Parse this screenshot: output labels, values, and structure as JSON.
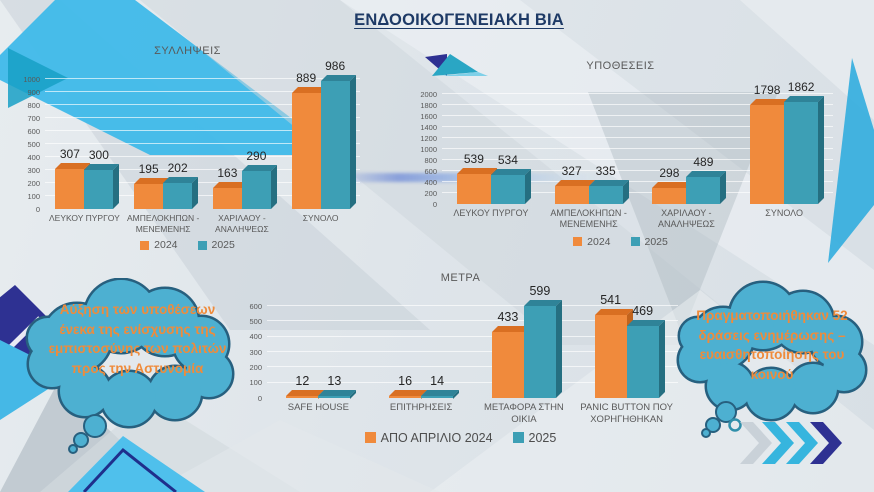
{
  "slide": {
    "title": "ΕΝΔΟΟΙΚΟΓΕΝΕΙΑΚΗ ΒΙΑ",
    "callouts": {
      "left": "Αύξηση των υποθέσεων ένεκα της ενίσχυσης της εμπιστοσύνης των πολιτών προς την Αστυνομία",
      "right": "Πραγματοποιήθηκαν 52 δράσεις ενημέρωσης – ευαισθητοποίησης του κοινού"
    },
    "colors": {
      "accent_orange": "#ED7D31",
      "accent_teal": "#3D9FB5",
      "title_navy": "#1E3A66",
      "cloud_fill": "#4DB0D1",
      "cloud_outline": "#27607F",
      "chevron_navy": "#2E3192",
      "chevron_cyan": "#36B5DE"
    },
    "decor_icons": [
      "paper-plane-icon",
      "thought-cloud-icon",
      "chevron-right-icon",
      "triangle-decor"
    ]
  },
  "chart_data": [
    {
      "type": "bar",
      "title": "ΣΥΛΛΗΨΕΙΣ",
      "categories": [
        "ΛΕΥΚΟΥ ΠΥΡΓΟΥ",
        "ΑΜΠΕΛΟΚΗΠΩΝ - ΜΕΝΕΜΕΝΗΣ",
        "ΧΑΡΙΛΑΟΥ - ΑΝΑΛΗΨΕΩΣ",
        "ΣΥΝΟΛΟ"
      ],
      "series": [
        {
          "name": "2024",
          "color": "#F08A3C",
          "top": "#D96F22",
          "side": "#C2631C",
          "values": [
            307,
            195,
            163,
            889
          ]
        },
        {
          "name": "2025",
          "color": "#3D9FB5",
          "top": "#2F8398",
          "side": "#256F81",
          "values": [
            300,
            202,
            290,
            986
          ]
        }
      ],
      "ylabel": "",
      "xlabel": "",
      "ylim": [
        0,
        1000
      ],
      "yticks": [
        0,
        100,
        200,
        300,
        400,
        500,
        600,
        700,
        800,
        900,
        1000
      ],
      "grid": true,
      "legend_position": "bottom"
    },
    {
      "type": "bar",
      "title": "ΥΠΟΘΕΣΕΙΣ",
      "categories": [
        "ΛΕΥΚΟΥ ΠΥΡΓΟΥ",
        "ΑΜΠΕΛΟΚΗΠΩΝ - ΜΕΝΕΜΕΝΗΣ",
        "ΧΑΡΙΛΑΟΥ - ΑΝΑΛΗΨΕΩΣ",
        "ΣΥΝΟΛΟ"
      ],
      "series": [
        {
          "name": "2024",
          "color": "#F08A3C",
          "top": "#D96F22",
          "side": "#C2631C",
          "values": [
            539,
            327,
            298,
            1798
          ]
        },
        {
          "name": "2025",
          "color": "#3D9FB5",
          "top": "#2F8398",
          "side": "#256F81",
          "values": [
            534,
            335,
            489,
            1862
          ]
        }
      ],
      "ylabel": "",
      "xlabel": "",
      "ylim": [
        0,
        2000
      ],
      "yticks": [
        0,
        200,
        400,
        600,
        800,
        1000,
        1200,
        1400,
        1600,
        1800,
        2000
      ],
      "grid": true,
      "legend_position": "bottom"
    },
    {
      "type": "bar",
      "title": "ΜΕΤΡΑ",
      "categories": [
        "SAFE HOUSE",
        "ΕΠΙΤΗΡΗΣΕΙΣ",
        "ΜΕΤΑΦΟΡΑ ΣΤΗΝ ΟΙΚΙΑ",
        "PANIC BUTTON ΠΟΥ ΧΟΡΗΓΗΘΗΚΑΝ"
      ],
      "series": [
        {
          "name": "ΑΠΟ ΑΠΡΙΛΙΟ 2024",
          "color": "#F08A3C",
          "top": "#D96F22",
          "side": "#C2631C",
          "values": [
            12,
            16,
            433,
            541
          ]
        },
        {
          "name": "2025",
          "color": "#3D9FB5",
          "top": "#2F8398",
          "side": "#256F81",
          "values": [
            13,
            14,
            599,
            469
          ]
        }
      ],
      "ylabel": "",
      "xlabel": "",
      "ylim": [
        0,
        600
      ],
      "yticks": [
        0,
        100,
        200,
        300,
        400,
        500,
        600
      ],
      "grid": true,
      "legend_position": "bottom"
    }
  ]
}
